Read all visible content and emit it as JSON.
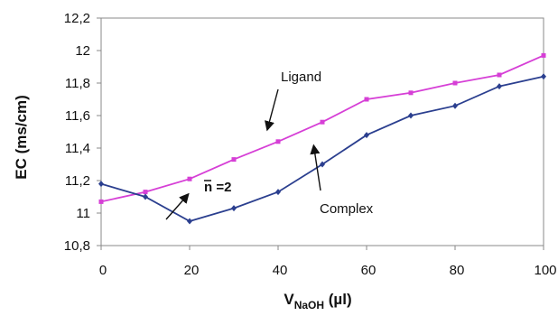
{
  "colors": {
    "ligand": "#d63fd6",
    "complex": "#2b3f8f",
    "axis": "#888888",
    "arrow": "#111111"
  },
  "chart_data": {
    "type": "line",
    "xlabel_main": "V",
    "xlabel_sub": "NaOH",
    "xlabel_unit": " (µl)",
    "ylabel": "EC (ms/cm)",
    "xlim": [
      0,
      100
    ],
    "ylim": [
      10.8,
      12.2
    ],
    "xticks": [
      0,
      20,
      40,
      60,
      80,
      100
    ],
    "yticks": [
      10.8,
      11,
      11.2,
      11.4,
      11.6,
      11.8,
      12,
      12.2
    ],
    "ytick_labels": [
      "10,8",
      "11",
      "11,2",
      "11,4",
      "11,6",
      "11,8",
      "12",
      "12,2"
    ],
    "grid": false,
    "series": [
      {
        "name": "Ligand",
        "marker": "square",
        "x": [
          0,
          10,
          20,
          30,
          40,
          50,
          60,
          70,
          80,
          90,
          100
        ],
        "y": [
          11.07,
          11.13,
          11.21,
          11.33,
          11.44,
          11.56,
          11.7,
          11.74,
          11.8,
          11.85,
          11.97
        ]
      },
      {
        "name": "Complex",
        "marker": "diamond",
        "x": [
          0,
          10,
          20,
          30,
          40,
          50,
          60,
          70,
          80,
          90,
          100
        ],
        "y": [
          11.18,
          11.1,
          10.95,
          11.03,
          11.13,
          11.3,
          11.48,
          11.6,
          11.66,
          11.78,
          11.84
        ]
      }
    ],
    "annotations": [
      {
        "text": "Ligand",
        "series": "Ligand"
      },
      {
        "text": "Complex",
        "series": "Complex"
      },
      {
        "text": "n",
        "overbar": true,
        "suffix": " =2"
      }
    ]
  }
}
